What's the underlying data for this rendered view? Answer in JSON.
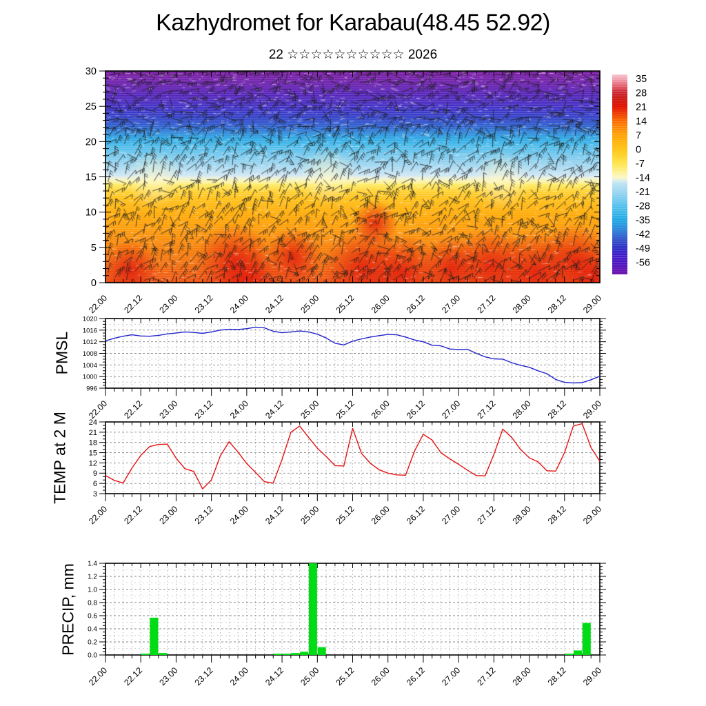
{
  "header": {
    "title": "Kazhydromet for Karabau(48.45 52.92)",
    "subtitle": "22 ☆☆☆☆☆☆☆☆☆☆ 2026"
  },
  "x_axis": {
    "tick_labels": [
      "22.00",
      "22.12",
      "23.00",
      "23.12",
      "24.00",
      "24.12",
      "25.00",
      "25.12",
      "26.00",
      "26.12",
      "27.00",
      "27.12",
      "28.00",
      "28.12",
      "29.00"
    ],
    "start": "22.00",
    "end": "29.00",
    "total_hours": 168,
    "minor_step_hours": 3,
    "major_step_hours": 12
  },
  "main_panel": {
    "y_tick_labels": [
      "0",
      "5",
      "10",
      "15",
      "20",
      "25",
      "30"
    ],
    "y_range": [
      0,
      30
    ],
    "content": "temperature shading with wind barbs",
    "gradient_stops": [
      [
        0,
        "#ee4f0c"
      ],
      [
        3,
        "#f4720a"
      ],
      [
        6,
        "#f98a07"
      ],
      [
        8,
        "#fd9d05"
      ],
      [
        10,
        "#ffae08"
      ],
      [
        12,
        "#ffc117"
      ],
      [
        13,
        "#ffd231"
      ],
      [
        13.8,
        "#ffe95e"
      ],
      [
        14.3,
        "#fcf3a2"
      ],
      [
        14.8,
        "#eef2d8"
      ],
      [
        15.2,
        "#cfe7f4"
      ],
      [
        16.5,
        "#a5d8f1"
      ],
      [
        18,
        "#77c9ee"
      ],
      [
        19.5,
        "#44b9ea"
      ],
      [
        20.5,
        "#2aa6e4"
      ],
      [
        21.3,
        "#2f86da"
      ],
      [
        22.2,
        "#2f62d0"
      ],
      [
        23.4,
        "#3140c7"
      ],
      [
        24.6,
        "#3b2fc7"
      ],
      [
        25.8,
        "#4b28c0"
      ],
      [
        27,
        "#5a23b8"
      ],
      [
        28.2,
        "#6b20ae"
      ],
      [
        30,
        "#7d1ba3"
      ]
    ]
  },
  "colorbar": {
    "tick_labels": [
      "35",
      "28",
      "21",
      "14",
      "7",
      "0",
      "-7",
      "-14",
      "-21",
      "-28",
      "-35",
      "-42",
      "-49",
      "-56"
    ],
    "value_range": [
      37,
      -62
    ],
    "stops": [
      [
        37,
        "#f7c6d0"
      ],
      [
        34,
        "#ef93a5"
      ],
      [
        31,
        "#e05a66"
      ],
      [
        28,
        "#cc2430"
      ],
      [
        25,
        "#cc1a10"
      ],
      [
        21,
        "#e31000"
      ],
      [
        17,
        "#f04400"
      ],
      [
        14,
        "#fa6b00"
      ],
      [
        10,
        "#fd8c03"
      ],
      [
        7,
        "#ffa305"
      ],
      [
        3,
        "#ffb70c"
      ],
      [
        0,
        "#ffc415"
      ],
      [
        -4,
        "#ffd62e"
      ],
      [
        -7,
        "#ffe44a"
      ],
      [
        -11,
        "#fdf08c"
      ],
      [
        -14,
        "#fbf7c4"
      ],
      [
        -15.5,
        "#dceee9"
      ],
      [
        -17,
        "#bce3f2"
      ],
      [
        -21,
        "#9cd7f1"
      ],
      [
        -25,
        "#77cbef"
      ],
      [
        -28,
        "#55c1ec"
      ],
      [
        -32,
        "#35b5e9"
      ],
      [
        -35,
        "#1fa9e4"
      ],
      [
        -39,
        "#2b8ddb"
      ],
      [
        -42,
        "#2f6ed2"
      ],
      [
        -45,
        "#3352c9"
      ],
      [
        -49,
        "#2e2ec6"
      ],
      [
        -52,
        "#3c1fc8"
      ],
      [
        -56,
        "#4c17c2"
      ],
      [
        -59,
        "#5c14b8"
      ],
      [
        -62,
        "#6e12ac"
      ]
    ]
  },
  "chart_data": [
    {
      "type": "heatmap",
      "name": "upper-air temperature and wind cross-section",
      "x_tick_labels": [
        "22.00",
        "22.12",
        "23.00",
        "23.12",
        "24.00",
        "24.12",
        "25.00",
        "25.12",
        "26.00",
        "26.12",
        "27.00",
        "27.12",
        "28.00",
        "28.12",
        "29.00"
      ],
      "y_ticks": [
        0,
        5,
        10,
        15,
        20,
        25,
        30
      ],
      "colorbar_ticks": [
        35,
        28,
        21,
        14,
        7,
        0,
        -7,
        -14,
        -21,
        -28,
        -35,
        -42,
        -49,
        -56
      ],
      "bands_note": "warm red/orange below ~13, yellow 13-14.5, pale transition ~15, light blue to cyan 15-20, blue 20-24, dark blue-purple 24-30; wind barbs overlaid"
    },
    {
      "type": "line",
      "name": "PMSL",
      "color": "#2323cd",
      "ylim": [
        996,
        1020
      ],
      "y_ticks": [
        996,
        1000,
        1004,
        1008,
        1012,
        1016,
        1020
      ],
      "start_hour": 0,
      "step_hours": 3,
      "values": [
        1012.3,
        1013.2,
        1013.9,
        1014.4,
        1014.0,
        1013.9,
        1014.2,
        1014.7,
        1015.0,
        1015.4,
        1015.2,
        1014.9,
        1015.4,
        1016.0,
        1016.3,
        1016.2,
        1016.5,
        1017.0,
        1016.8,
        1015.6,
        1015.1,
        1015.4,
        1015.7,
        1015.4,
        1014.6,
        1013.3,
        1011.5,
        1010.9,
        1012.2,
        1013.0,
        1013.6,
        1014.1,
        1014.5,
        1014.4,
        1013.6,
        1012.6,
        1012.0,
        1010.8,
        1010.6,
        1009.5,
        1009.3,
        1009.4,
        1008.0,
        1006.8,
        1006.1,
        1006.0,
        1004.8,
        1003.9,
        1003.2,
        1002.0,
        1001.0,
        999.0,
        998.0,
        997.8,
        997.9,
        998.9,
        1000.1
      ]
    },
    {
      "type": "line",
      "name": "TEMP at 2 M",
      "color": "#e51212",
      "ylim": [
        3,
        24
      ],
      "y_ticks": [
        3,
        6,
        9,
        12,
        15,
        18,
        21,
        24
      ],
      "start_hour": 0,
      "step_hours": 3,
      "values": [
        8.3,
        6.9,
        6.1,
        10.5,
        14.2,
        16.8,
        17.4,
        17.5,
        13.4,
        10.3,
        9.5,
        4.4,
        7.0,
        14.0,
        18.2,
        15.2,
        11.8,
        9.2,
        6.5,
        6.1,
        13.0,
        21.0,
        22.8,
        19.5,
        16.3,
        13.9,
        11.2,
        11.1,
        22.1,
        14.8,
        11.9,
        10.0,
        9.0,
        8.5,
        8.4,
        15.4,
        20.4,
        18.7,
        15.0,
        13.2,
        11.6,
        9.9,
        8.3,
        8.2,
        14.5,
        21.9,
        19.5,
        16.0,
        13.5,
        12.3,
        9.7,
        9.6,
        15.0,
        22.8,
        23.5,
        16.5,
        12.5
      ]
    },
    {
      "type": "bar",
      "name": "PRECIP, mm",
      "color": "#00dc14",
      "ylim": [
        0,
        1.4
      ],
      "y_ticks": [
        0.0,
        0.2,
        0.4,
        0.6,
        0.8,
        1.0,
        1.2,
        1.4
      ],
      "bar_width_hours": 3,
      "bars": [
        [
          12,
          0.02
        ],
        [
          15,
          0.57
        ],
        [
          18,
          0.03
        ],
        [
          57,
          0.02
        ],
        [
          60,
          0.02
        ],
        [
          63,
          0.03
        ],
        [
          66,
          0.05
        ],
        [
          69,
          1.4
        ],
        [
          72,
          0.12
        ],
        [
          156,
          0.02
        ],
        [
          159,
          0.07
        ],
        [
          162,
          0.49
        ]
      ]
    }
  ]
}
